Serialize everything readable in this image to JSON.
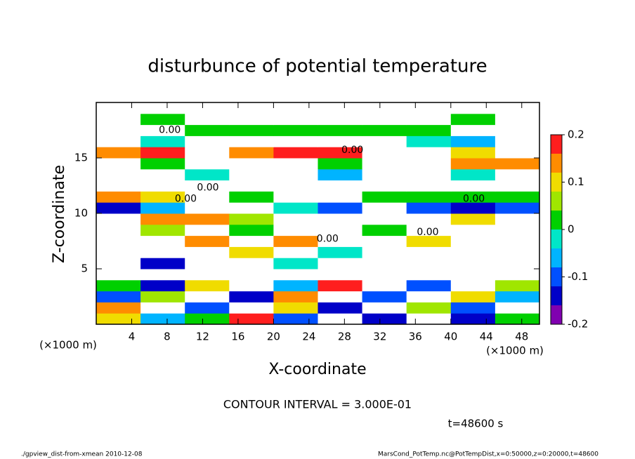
{
  "chart_data": {
    "type": "heatmap",
    "title": "disturbunce of potential temperature",
    "x_label": "X-coordinate",
    "y_label": "Z-coordinate",
    "x_unit_left": "(×1000 m)",
    "x_unit_right": "(×1000 m)",
    "contour_interval": "CONTOUR INTERVAL = 3.000E-01",
    "time_label": "t=48600 s",
    "footer_left": "./gpview_dist-from-xmean  2010-12-08",
    "footer_right": "MarsCond_PotTemp.nc@PotTempDist,x=0:50000,z=0:20000,t=48600",
    "xlim": [
      0,
      50
    ],
    "ylim": [
      0,
      20
    ],
    "xticks": [
      4,
      8,
      12,
      16,
      20,
      24,
      28,
      32,
      36,
      40,
      44,
      48
    ],
    "yticks": [
      5,
      10,
      15
    ],
    "x_bins": [
      0,
      5,
      10,
      15,
      20,
      25,
      30,
      35,
      40,
      45,
      50
    ],
    "z_bins": [
      0,
      1,
      2,
      3,
      4,
      5,
      6,
      7,
      8,
      9,
      10,
      11,
      12,
      13,
      14,
      15,
      16,
      17,
      18,
      19,
      20
    ],
    "z": [
      [
        0.12,
        -0.05,
        0.02,
        0.18,
        -0.1,
        0.5,
        -0.12,
        0.5,
        -0.15,
        0.03
      ],
      [
        0.15,
        0.5,
        -0.08,
        0.5,
        0.1,
        -0.15,
        0.5,
        0.05,
        -0.1,
        0.5
      ],
      [
        -0.1,
        0.08,
        0.5,
        -0.12,
        0.15,
        0.5,
        -0.08,
        0.5,
        0.1,
        -0.05
      ],
      [
        0.02,
        -0.14,
        0.12,
        0.5,
        -0.05,
        0.18,
        0.5,
        -0.1,
        0.5,
        0.08
      ],
      [
        0.5,
        0.5,
        0.5,
        0.5,
        0.5,
        0.5,
        0.5,
        0.5,
        0.5,
        0.5
      ],
      [
        0.5,
        -0.12,
        0.5,
        0.5,
        -0.02,
        0.5,
        0.5,
        0.5,
        0.5,
        0.5
      ],
      [
        0.5,
        0.5,
        0.5,
        0.1,
        0.5,
        -0.02,
        0.5,
        0.5,
        0.5,
        0.5
      ],
      [
        0.5,
        0.5,
        0.14,
        0.5,
        0.15,
        0.5,
        0.5,
        0.12,
        0.5,
        0.5
      ],
      [
        0.5,
        0.08,
        0.5,
        0.02,
        0.5,
        0.5,
        0.02,
        0.5,
        0.5,
        0.5
      ],
      [
        0.5,
        0.13,
        0.15,
        0.08,
        0.5,
        0.5,
        0.5,
        0.5,
        0.1,
        0.5
      ],
      [
        -0.12,
        -0.05,
        0.5,
        0.5,
        -0.03,
        -0.1,
        0.5,
        -0.08,
        -0.12,
        -0.1
      ],
      [
        0.15,
        0.12,
        0.5,
        0.02,
        0.5,
        0.5,
        0.01,
        0.02,
        0.01,
        0.02
      ],
      [
        0.5,
        0.5,
        0.5,
        0.5,
        0.5,
        0.5,
        0.5,
        0.5,
        0.5,
        0.5
      ],
      [
        0.5,
        0.5,
        -0.03,
        0.5,
        0.5,
        -0.04,
        0.5,
        0.5,
        -0.03,
        0.5
      ],
      [
        0.5,
        0.01,
        0.5,
        0.5,
        0.5,
        0.01,
        0.5,
        0.5,
        0.15,
        0.14
      ],
      [
        0.15,
        0.17,
        0.5,
        0.16,
        0.17,
        0.17,
        0.5,
        0.5,
        0.12,
        0.5
      ],
      [
        0.5,
        -0.03,
        0.5,
        0.5,
        0.5,
        0.5,
        0.5,
        -0.03,
        -0.04,
        0.5
      ],
      [
        0.5,
        0.5,
        0.02,
        0.01,
        0.01,
        0.01,
        0.02,
        0.01,
        0.5,
        0.5
      ],
      [
        0.5,
        0.02,
        0.5,
        0.5,
        0.5,
        0.5,
        0.5,
        0.5,
        0.02,
        0.5
      ],
      [
        0.5,
        0.5,
        0.5,
        0.5,
        0.5,
        0.5,
        0.5,
        0.5,
        0.5,
        0.5
      ]
    ],
    "contour_labels": [
      {
        "text": "0.00",
        "x": 8.3,
        "z": 17.5
      },
      {
        "text": "0.00",
        "x": 28.9,
        "z": 15.7
      },
      {
        "text": "0.00",
        "x": 12.6,
        "z": 12.3
      },
      {
        "text": "0.00",
        "x": 10.1,
        "z": 11.3
      },
      {
        "text": "0.00",
        "x": 42.6,
        "z": 11.3
      },
      {
        "text": "0.00",
        "x": 37.4,
        "z": 8.3
      },
      {
        "text": "0.00",
        "x": 26.1,
        "z": 7.7
      }
    ],
    "colorbar": {
      "levels": [
        -0.2,
        -0.16,
        -0.12,
        -0.08,
        -0.04,
        0,
        0.04,
        0.08,
        0.12,
        0.16,
        0.2
      ],
      "colors": [
        "#8000b0",
        "#0000c8",
        "#0050ff",
        "#00b4ff",
        "#00e6c8",
        "#00d000",
        "#a0e600",
        "#f0dc00",
        "#ff8c00",
        "#ff1e1e"
      ],
      "over_color": "#ffffff",
      "ticks": [
        -0.2,
        -0.1,
        0,
        0.1,
        0.2
      ]
    }
  }
}
